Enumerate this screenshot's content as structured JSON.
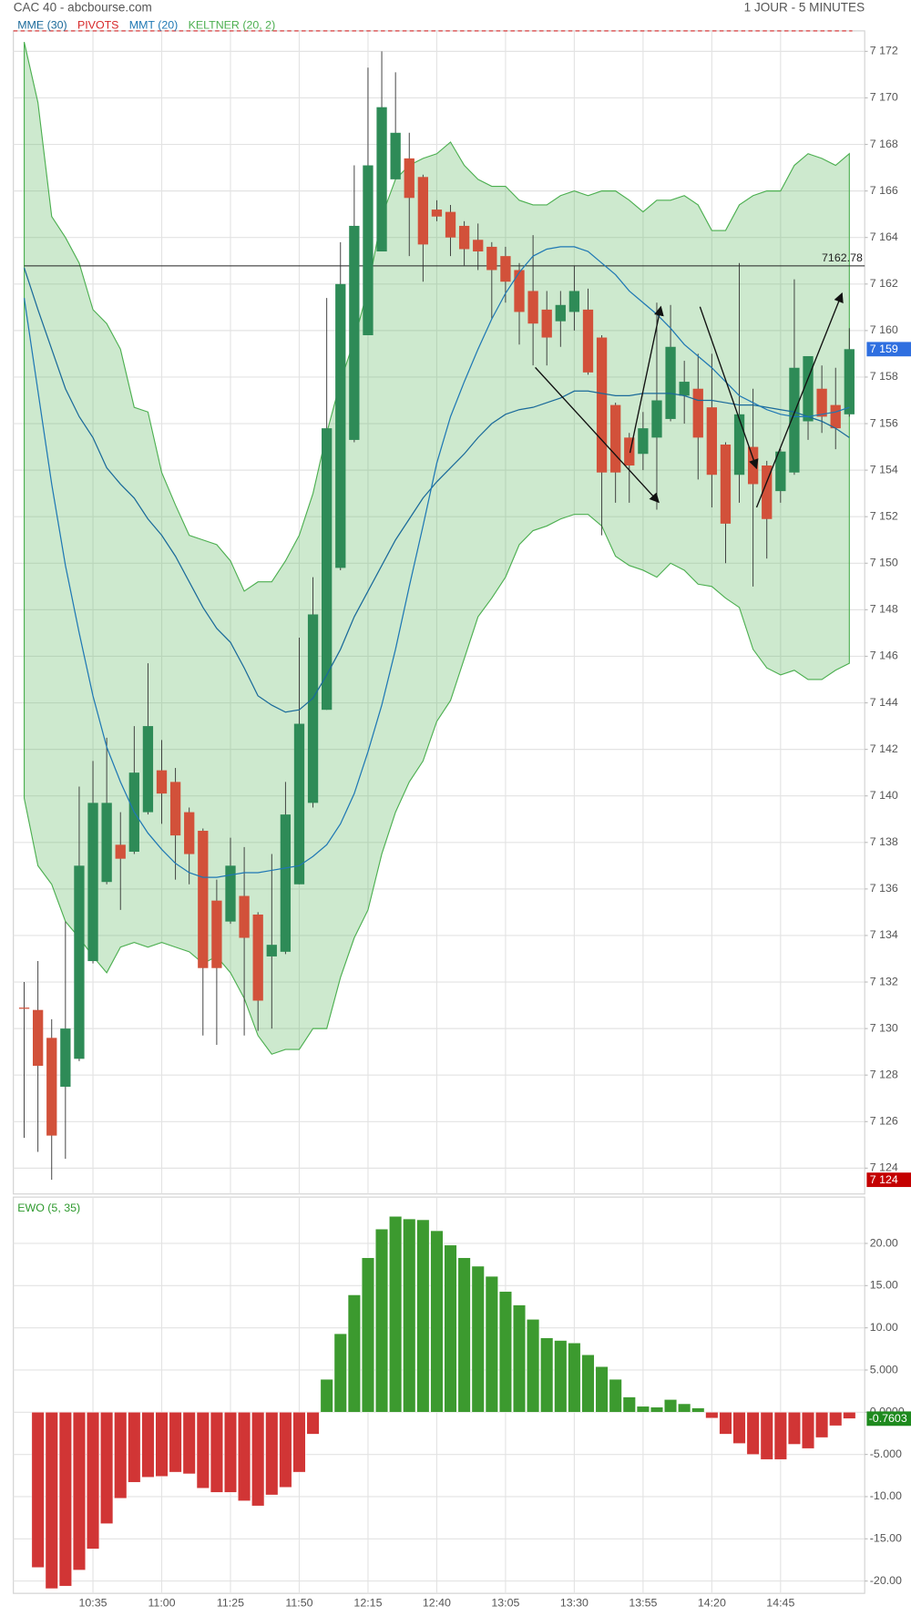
{
  "header": {
    "title": "CAC 40 - abcbourse.com",
    "timeframe": "1 JOUR - 5 MINUTES"
  },
  "chart_data": [
    {
      "type": "candlestick",
      "categories": [
        null,
        null,
        null,
        null,
        null,
        "10:35",
        null,
        null,
        null,
        null,
        "11:00",
        null,
        null,
        null,
        null,
        "11:25",
        null,
        null,
        null,
        null,
        "11:50",
        null,
        null,
        null,
        null,
        "12:15",
        null,
        null,
        null,
        null,
        "12:40",
        null,
        null,
        null,
        null,
        "13:05",
        null,
        null,
        null,
        null,
        "13:30",
        null,
        null,
        null,
        null,
        "13:55",
        null,
        null,
        null,
        null,
        "14:20",
        null,
        null,
        null,
        null,
        "14:45",
        null,
        null,
        null,
        null,
        null
      ],
      "open": [
        7130.9,
        7130.8,
        7129.6,
        7127.5,
        7128.7,
        7132.9,
        7136.3,
        7137.9,
        7137.6,
        7139.3,
        7141.1,
        7140.6,
        7139.3,
        7138.5,
        7135.5,
        7134.6,
        7135.7,
        7134.9,
        7133.1,
        7133.3,
        7136.2,
        7139.7,
        7143.7,
        7149.8,
        7155.3,
        7159.8,
        7163.4,
        7166.5,
        7167.4,
        7166.6,
        7165.2,
        7165.1,
        7164.5,
        7163.9,
        7163.6,
        7163.2,
        7162.6,
        7161.7,
        7160.9,
        7160.4,
        7160.8,
        7160.9,
        7159.7,
        7156.8,
        7155.4,
        7154.7,
        7155.4,
        7156.2,
        7157.2,
        7157.5,
        7156.7,
        7155.1,
        7153.8,
        7155.0,
        7154.2,
        7153.1,
        7153.9,
        7156.1,
        7157.5,
        7156.8,
        7156.4
      ],
      "high": [
        7132.0,
        7132.9,
        7130.4,
        7134.6,
        7140.4,
        7141.5,
        7142.5,
        7139.3,
        7143.0,
        7145.7,
        7142.4,
        7141.2,
        7139.5,
        7138.6,
        7136.4,
        7138.2,
        7137.8,
        7135.0,
        7137.5,
        7140.6,
        7146.8,
        7149.4,
        7161.4,
        7163.8,
        7167.1,
        7171.3,
        7172.0,
        7171.1,
        7168.5,
        7166.7,
        7165.6,
        7165.4,
        7164.7,
        7164.6,
        7163.8,
        7163.6,
        7162.9,
        7164.1,
        7161.7,
        7161.7,
        7162.8,
        7161.8,
        7159.8,
        7156.9,
        7155.6,
        7156.5,
        7161.2,
        7161.1,
        7158.7,
        7159.0,
        7159.0,
        7155.2,
        7162.9,
        7157.5,
        7154.4,
        7154.9,
        7162.2,
        7158.9,
        7158.5,
        7158.4,
        7160.1
      ],
      "low": [
        7125.3,
        7124.7,
        7123.5,
        7124.4,
        7128.6,
        7132.8,
        7136.2,
        7135.1,
        7137.5,
        7139.2,
        7138.8,
        7136.4,
        7136.2,
        7129.7,
        7129.3,
        7134.5,
        7129.7,
        7129.9,
        7130.0,
        7133.2,
        7136.2,
        7139.5,
        7143.7,
        7149.7,
        7155.2,
        7159.8,
        7163.4,
        7166.5,
        7163.2,
        7162.1,
        7164.7,
        7163.2,
        7162.8,
        7162.6,
        7160.5,
        7161.2,
        7159.4,
        7158.5,
        7158.5,
        7159.3,
        7160.0,
        7158.1,
        7151.2,
        7152.6,
        7152.6,
        7154.0,
        7152.3,
        7156.1,
        7156.0,
        7153.6,
        7152.4,
        7150.0,
        7152.6,
        7149.0,
        7150.2,
        7152.6,
        7153.8,
        7155.3,
        7155.6,
        7154.9,
        7156.3
      ],
      "close": [
        7130.85,
        7128.4,
        7125.4,
        7130.0,
        7137.0,
        7139.7,
        7139.7,
        7137.3,
        7141.0,
        7143.0,
        7140.1,
        7138.3,
        7137.5,
        7132.6,
        7132.6,
        7137.0,
        7133.9,
        7131.2,
        7133.6,
        7139.2,
        7143.1,
        7147.8,
        7155.8,
        7162.0,
        7164.5,
        7167.1,
        7169.6,
        7168.5,
        7165.7,
        7163.7,
        7164.9,
        7164.0,
        7163.5,
        7163.4,
        7162.6,
        7162.1,
        7160.8,
        7160.3,
        7159.7,
        7161.1,
        7161.7,
        7158.2,
        7153.9,
        7153.9,
        7154.2,
        7155.8,
        7157.0,
        7159.3,
        7157.8,
        7155.4,
        7153.8,
        7151.7,
        7156.4,
        7153.4,
        7151.9,
        7154.8,
        7158.4,
        7158.9,
        7156.3,
        7155.8,
        7159.2
      ],
      "up_color": "#2e8b57",
      "down_color": "#d2513a",
      "indicators": [
        {
          "name": "MME (30)",
          "color": "#1a6a9a",
          "values": [
            7162.7,
            7160.9,
            7159.2,
            7157.5,
            7156.3,
            7155.4,
            7154.1,
            7153.4,
            7152.8,
            7151.9,
            7151.2,
            7150.3,
            7149.2,
            7148.1,
            7147.2,
            7146.6,
            7145.5,
            7144.3,
            7143.9,
            7143.6,
            7143.7,
            7144.2,
            7145.2,
            7146.3,
            7147.7,
            7148.8,
            7149.9,
            7151.0,
            7151.9,
            7152.8,
            7153.5,
            7154.1,
            7154.7,
            7155.4,
            7156.0,
            7156.4,
            7156.6,
            7156.7,
            7156.9,
            7157.1,
            7157.4,
            7157.4,
            7157.3,
            7157.2,
            7157.2,
            7157.3,
            7157.3,
            7157.3,
            7157.2,
            7157.0,
            7157.0,
            7156.9,
            7156.8,
            7156.8,
            7156.7,
            7156.6,
            7156.5,
            7156.3,
            7156.1,
            7155.8,
            7155.4
          ]
        },
        {
          "name": "PIVOTS",
          "color": "#d62728",
          "value": 7172.88
        },
        {
          "name": "MMT (20)",
          "color": "#1f78b4",
          "values": [
            7161.4,
            7157.4,
            7153.4,
            7149.9,
            7147.0,
            7144.3,
            7142.1,
            7140.6,
            7139.3,
            7138.4,
            7137.7,
            7137.1,
            7136.7,
            7136.5,
            7136.5,
            7136.6,
            7136.7,
            7136.7,
            7136.8,
            7136.9,
            7137.0,
            7137.4,
            7137.9,
            7138.8,
            7140.1,
            7141.9,
            7143.9,
            7146.3,
            7149.0,
            7151.6,
            7154.3,
            7156.3,
            7157.8,
            7159.2,
            7160.5,
            7161.6,
            7162.5,
            7163.2,
            7163.5,
            7163.6,
            7163.6,
            7163.4,
            7162.9,
            7162.4,
            7161.7,
            7161.2,
            7160.7,
            7160.1,
            7159.4,
            7158.9,
            7158.4,
            7157.8,
            7157.2,
            7156.9,
            7156.6,
            7156.4,
            7156.3,
            7156.3,
            7156.4,
            7156.5,
            7156.7
          ]
        },
        {
          "name": "KELTNER (20, 2)",
          "color": "#4caf50",
          "upper": [
            7172.4,
            7169.8,
            7164.9,
            7164.0,
            7162.9,
            7160.9,
            7160.3,
            7159.2,
            7156.7,
            7156.5,
            7153.9,
            7152.5,
            7151.2,
            7151.0,
            7150.8,
            7150.1,
            7148.8,
            7149.2,
            7149.2,
            7150.1,
            7151.2,
            7153.0,
            7155.6,
            7157.8,
            7159.6,
            7161.8,
            7164.9,
            7166.5,
            7167.1,
            7167.4,
            7167.6,
            7168.1,
            7167.1,
            7166.5,
            7166.2,
            7166.2,
            7165.6,
            7165.4,
            7165.4,
            7165.8,
            7166.0,
            7165.8,
            7166.0,
            7166.0,
            7165.6,
            7165.1,
            7165.6,
            7165.6,
            7165.8,
            7165.4,
            7164.3,
            7164.3,
            7165.4,
            7165.8,
            7166.0,
            7166.0,
            7167.1,
            7167.6,
            7167.4,
            7167.1,
            7167.6
          ],
          "lower": [
            7139.9,
            7137.0,
            7136.2,
            7134.6,
            7133.9,
            7133.1,
            7132.4,
            7133.5,
            7133.7,
            7133.5,
            7133.7,
            7133.5,
            7133.3,
            7132.8,
            7133.1,
            7132.4,
            7131.3,
            7129.7,
            7128.9,
            7129.1,
            7129.1,
            7130.0,
            7130.0,
            7132.2,
            7133.9,
            7135.1,
            7137.5,
            7139.3,
            7140.6,
            7141.5,
            7143.2,
            7144.1,
            7145.9,
            7147.7,
            7148.5,
            7149.4,
            7150.8,
            7151.4,
            7151.6,
            7151.9,
            7152.1,
            7152.1,
            7151.6,
            7150.3,
            7149.9,
            7149.7,
            7149.4,
            7150.0,
            7149.7,
            7149.1,
            7149.0,
            7148.5,
            7148.1,
            7146.3,
            7145.5,
            7145.2,
            7145.4,
            7145.0,
            7145.0,
            7145.4,
            7145.7
          ]
        }
      ],
      "hline": 7162.78,
      "last_price_tag": {
        "value": 7159.2,
        "label": "7 159",
        "color": "#2f6fe0"
      },
      "low_tag": {
        "value": 7123.5,
        "label": "7 124",
        "color": "#c40000"
      },
      "ylim": [
        7122.89,
        7172.88
      ],
      "yticks": [
        {
          "value": 7124,
          "label": "7 124"
        },
        {
          "value": 7126,
          "label": "7 126"
        },
        {
          "value": 7128,
          "label": "7 128"
        },
        {
          "value": 7130,
          "label": "7 130"
        },
        {
          "value": 7132,
          "label": "7 132"
        },
        {
          "value": 7134,
          "label": "7 134"
        },
        {
          "value": 7136,
          "label": "7 136"
        },
        {
          "value": 7138,
          "label": "7 138"
        },
        {
          "value": 7140,
          "label": "7 140"
        },
        {
          "value": 7142,
          "label": "7 142"
        },
        {
          "value": 7144,
          "label": "7 144"
        },
        {
          "value": 7146,
          "label": "7 146"
        },
        {
          "value": 7148,
          "label": "7 148"
        },
        {
          "value": 7150,
          "label": "7 150"
        },
        {
          "value": 7152,
          "label": "7 152"
        },
        {
          "value": 7154,
          "label": "7 154"
        },
        {
          "value": 7156,
          "label": "7 156"
        },
        {
          "value": 7158,
          "label": "7 158"
        },
        {
          "value": 7160,
          "label": "7 160"
        },
        {
          "value": 7162,
          "label": "7 162"
        },
        {
          "value": 7164,
          "label": "7 164"
        },
        {
          "value": 7166,
          "label": "7 166"
        },
        {
          "value": 7168,
          "label": "7 168"
        },
        {
          "value": 7170,
          "label": "7 170"
        },
        {
          "value": 7172,
          "label": "7 172"
        }
      ],
      "grid": true
    },
    {
      "type": "bar",
      "title": "EWO (5, 35)",
      "title_color": "#2e9a2e",
      "values": [
        null,
        -18.4,
        -20.9,
        -20.6,
        -18.7,
        -16.2,
        -13.2,
        -10.2,
        -8.3,
        -7.7,
        -7.6,
        -7.1,
        -7.3,
        -9.0,
        -9.5,
        -9.5,
        -10.5,
        -11.1,
        -9.8,
        -8.9,
        -7.1,
        -2.6,
        3.9,
        9.3,
        13.9,
        18.3,
        21.7,
        23.2,
        22.9,
        22.8,
        21.5,
        19.8,
        18.3,
        17.3,
        16.1,
        14.3,
        12.7,
        11.0,
        8.8,
        8.5,
        8.2,
        6.8,
        5.4,
        3.9,
        1.8,
        0.7,
        0.6,
        1.5,
        1.0,
        0.5,
        -0.7,
        -2.6,
        -3.7,
        -5.0,
        -5.6,
        -5.6,
        -3.8,
        -4.3,
        -3.0,
        -1.6,
        -0.7603
      ],
      "up_color": "#3c9a2f",
      "down_color": "#d13535",
      "tag_color": "#1e8a1e",
      "ylim": [
        -21.46,
        25.49
      ],
      "yticks": [
        {
          "value": 20,
          "label": "20.00"
        },
        {
          "value": 15,
          "label": "15.00"
        },
        {
          "value": 10,
          "label": "10.00"
        },
        {
          "value": 5,
          "label": "5.000"
        },
        {
          "value": 0,
          "label": "0.0000"
        },
        {
          "value": -5,
          "label": "-5.000"
        },
        {
          "value": -10,
          "label": "-10.00"
        },
        {
          "value": -15,
          "label": "-15.00"
        },
        {
          "value": -20,
          "label": "-20.00"
        }
      ],
      "grid": true
    }
  ]
}
